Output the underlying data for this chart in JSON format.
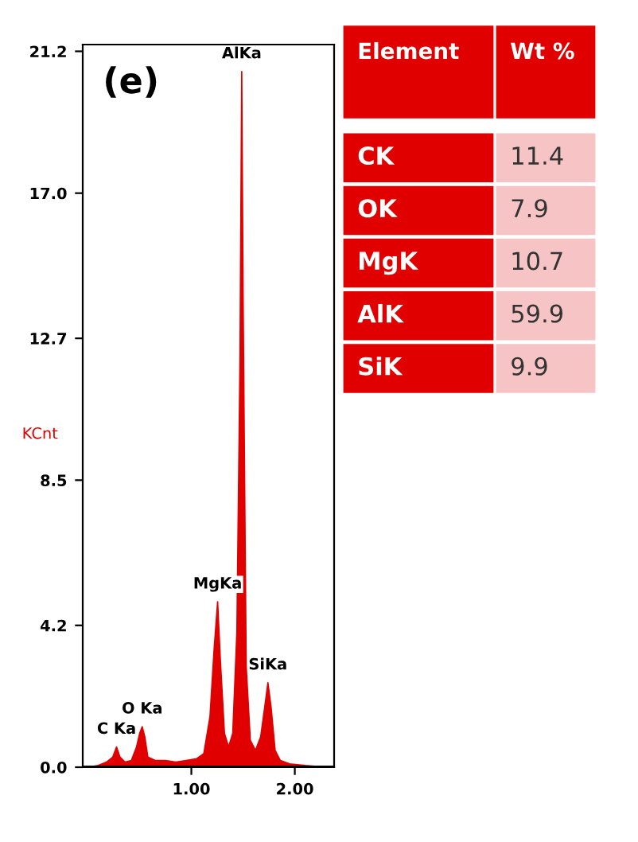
{
  "chart_data": [
    {
      "type": "area",
      "title": "(e)",
      "ylabel": "KCnt",
      "x": [
        0.0,
        0.1,
        0.18,
        0.24,
        0.277,
        0.31,
        0.36,
        0.42,
        0.47,
        0.5,
        0.525,
        0.55,
        0.58,
        0.65,
        0.75,
        0.85,
        0.95,
        1.05,
        1.12,
        1.18,
        1.22,
        1.254,
        1.28,
        1.32,
        1.36,
        1.4,
        1.44,
        1.47,
        1.487,
        1.5,
        1.53,
        1.57,
        1.62,
        1.67,
        1.71,
        1.74,
        1.77,
        1.81,
        1.86,
        1.95,
        2.1,
        2.3
      ],
      "series": [
        {
          "color": "#e00000",
          "values": [
            0.0,
            0.05,
            0.15,
            0.3,
            0.6,
            0.3,
            0.15,
            0.2,
            0.6,
            1.0,
            1.2,
            0.9,
            0.3,
            0.2,
            0.2,
            0.15,
            0.2,
            0.25,
            0.4,
            1.5,
            3.5,
            4.9,
            3.2,
            1.0,
            0.6,
            1.0,
            4.0,
            12.0,
            20.6,
            14.0,
            3.0,
            0.8,
            0.5,
            0.9,
            1.8,
            2.5,
            1.8,
            0.5,
            0.2,
            0.1,
            0.05,
            0.0
          ]
        }
      ],
      "xlim": [
        -0.05,
        2.38
      ],
      "ylim": [
        0,
        21.4
      ],
      "xticks": [
        {
          "value": 1,
          "label": "1.00"
        },
        {
          "value": 2,
          "label": "2.00"
        }
      ],
      "yticks": [
        {
          "value": 0,
          "label": "0.0"
        },
        4.2,
        8.5,
        12.7,
        {
          "value": 17,
          "label": "17.0"
        },
        21.2
      ],
      "annotations": [
        {
          "text": "C Ka",
          "x": 0.277,
          "y": 0.6
        },
        {
          "text": "O Ka",
          "x": 0.525,
          "y": 1.2
        },
        {
          "text": "MgKa",
          "x": 1.254,
          "y": 4.9
        },
        {
          "text": "AlKa",
          "x": 1.487,
          "y": 20.6
        },
        {
          "text": "SiKa",
          "x": 1.74,
          "y": 2.5
        }
      ]
    },
    {
      "type": "other",
      "annotations": [
        "Element",
        "Wt %",
        "CK",
        "11.4",
        "OK",
        "7.9",
        "MgK",
        "10.7",
        "AlK",
        "59.9",
        "SiK",
        "9.9"
      ]
    }
  ]
}
